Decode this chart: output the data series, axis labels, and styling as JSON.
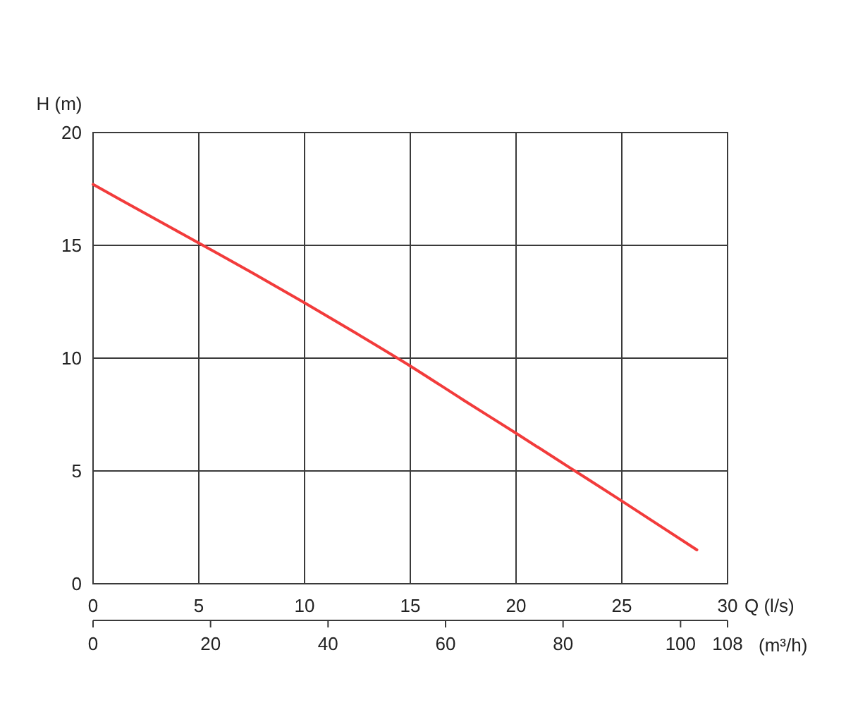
{
  "chart_data": {
    "type": "line",
    "xlabel": "Q (l/s)",
    "ylabel": "H (m)",
    "x2label": "(m³/h)",
    "x": [
      0,
      2.5,
      5,
      7.5,
      10,
      12.5,
      15,
      17.5,
      20,
      22.5,
      25,
      28.55
    ],
    "series": [
      {
        "color": "#f23b3b",
        "values": [
          17.7,
          16.4,
          15.1,
          13.8,
          12.45,
          11.07,
          9.65,
          8.15,
          6.67,
          5.17,
          3.67,
          1.5
        ]
      }
    ],
    "xlim": [
      0,
      30
    ],
    "xticks": [
      0,
      5,
      10,
      15,
      20,
      25,
      30
    ],
    "ylim": [
      0,
      20
    ],
    "yticks": [
      0,
      5,
      10,
      15,
      20
    ],
    "x2lim": [
      0,
      108
    ],
    "x2ticks": [
      0,
      20,
      40,
      60,
      80,
      100,
      108
    ],
    "grid": true
  }
}
